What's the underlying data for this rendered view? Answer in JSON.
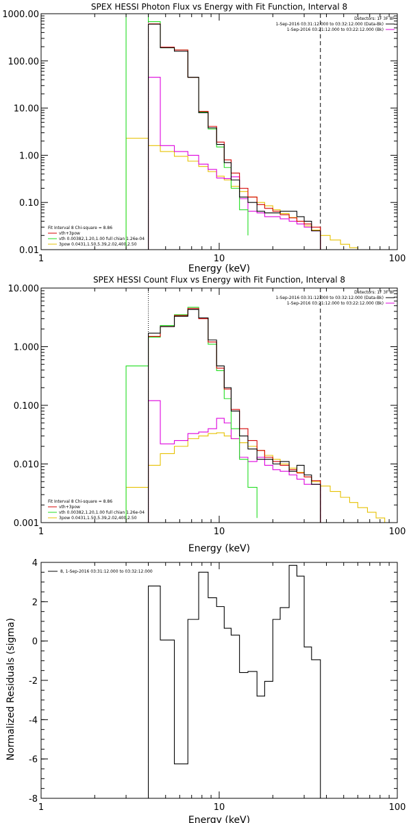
{
  "colors": {
    "black": "#000000",
    "red": "#d40000",
    "green": "#22dd22",
    "magenta": "#dd00dd",
    "gold": "#e6c000"
  },
  "chart_data": [
    {
      "type": "line",
      "title": "SPEX HESSI Photon Flux vs Energy with Fit Function, Interval 8",
      "xlabel": "Energy (keV)",
      "ylabel": "",
      "xscale": "log",
      "yscale": "log",
      "xlim": [
        1,
        100
      ],
      "ylim": [
        0.01,
        1000
      ],
      "x_ticks": [
        "1",
        "10",
        "100"
      ],
      "y_ticks": [
        "0.01",
        "0.10",
        "1.00",
        "10.00",
        "100.00",
        "1000.00"
      ],
      "detectors_label": "Detectors: 1F 3F 8F",
      "legend_top": [
        "1-Sep-2016 03:31:12.000 to 03:32:12.000 (Data-Bk)",
        "1-Sep-2016 03:21:12.000 to 03:22:12.000 (Bk)"
      ],
      "legend_bottom": [
        "Fit Interval 8   Chi-square = 8.86",
        "vth+3pow",
        "vth 0.00382,1.20,1.00  full chian 1.26e-04",
        "3pow 0.0431,1.50,5.39,2.02,400,2.50"
      ],
      "vlines": [
        4,
        37
      ],
      "series": [
        {
          "name": "1-Sep-2016 03:31:12.000 to 03:32:12.000 (Data-Bk)",
          "edges": [
            4,
            4.67,
            5.6,
            6.67,
            7.67,
            8.67,
            9.67,
            10.67,
            11.67,
            13,
            14.5,
            16.3,
            18,
            20,
            22,
            24.7,
            27.3,
            30,
            33,
            37
          ],
          "values": [
            600,
            190,
            160,
            45,
            8,
            3.8,
            1.7,
            0.7,
            0.3,
            0.13,
            0.1,
            0.065,
            0.06,
            0.06,
            0.065,
            0.065,
            0.05,
            0.04,
            0.025
          ]
        },
        {
          "name": "vth+3pow",
          "edges": [
            4,
            4.67,
            5.6,
            6.67,
            7.67,
            8.67,
            9.67,
            10.67,
            11.67,
            13,
            14.5,
            16.3,
            18,
            20,
            22,
            24.7,
            27.3,
            30,
            33,
            37
          ],
          "values": [
            610,
            195,
            170,
            45,
            8.5,
            4.1,
            1.9,
            0.8,
            0.42,
            0.2,
            0.13,
            0.09,
            0.075,
            0.065,
            0.055,
            0.047,
            0.04,
            0.035,
            0.03
          ]
        },
        {
          "name": "vth",
          "edges": [
            3,
            4,
            4.67,
            5.6,
            6.67,
            7.67,
            8.67,
            9.67,
            10.67,
            11.67,
            13,
            14.5
          ],
          "values": [
            1000,
            680,
            190,
            170,
            45,
            8.2,
            3.6,
            1.5,
            0.55,
            0.2,
            0.07,
            0.02
          ]
        },
        {
          "name": "1-Sep-2016 03:21:12.000 to 03:22:12.000 (Bk)",
          "edges": [
            4,
            4.67,
            5.6,
            6.67,
            7.67,
            8.67,
            9.67,
            10.67,
            11.67,
            13,
            14.5,
            16.3,
            18,
            20,
            22,
            24.7,
            27.3,
            30,
            33,
            37
          ],
          "values": [
            45,
            1.6,
            1.2,
            1.0,
            0.65,
            0.5,
            0.33,
            0.32,
            0.35,
            0.12,
            0.065,
            0.06,
            0.05,
            0.05,
            0.045,
            0.04,
            0.035,
            0.03,
            0.025
          ]
        },
        {
          "name": "3pow",
          "edges": [
            3,
            4,
            4.67,
            5.6,
            6.67,
            7.67,
            8.67,
            9.67,
            10.67,
            11.67,
            13,
            14.5,
            16.3,
            18,
            20,
            22,
            24.7,
            27.3,
            30,
            33,
            37,
            42,
            48,
            54,
            60
          ],
          "values": [
            2.3,
            1.6,
            1.2,
            0.95,
            0.75,
            0.58,
            0.45,
            0.36,
            0.3,
            0.22,
            0.17,
            0.13,
            0.1,
            0.085,
            0.07,
            0.058,
            0.048,
            0.04,
            0.032,
            0.026,
            0.02,
            0.016,
            0.013,
            0.011
          ]
        }
      ]
    },
    {
      "type": "line",
      "title": "SPEX HESSI Count Flux vs Energy with Fit Function, Interval 8",
      "xlabel": "Energy (keV)",
      "ylabel": "",
      "xscale": "log",
      "yscale": "log",
      "xlim": [
        1,
        100
      ],
      "ylim": [
        0.001,
        10
      ],
      "x_ticks": [
        "1",
        "10",
        "100"
      ],
      "y_ticks": [
        "0.001",
        "0.010",
        "0.100",
        "1.000",
        "10.000"
      ],
      "detectors_label": "Detectors: 1F 3F 8F",
      "legend_top": [
        "1-Sep-2016 03:31:12.000 to 03:32:12.000 (Data-Bk)",
        "1-Sep-2016 03:21:12.000 to 03:22:12.000 (Bk)"
      ],
      "legend_bottom": [
        "Fit Interval 8   Chi-square = 8.86",
        "vth+3pow",
        "vth 0.00382,1.20,1.00  full chian 1.26e-04",
        "3pow 0.0431,1.50,5.39,2.02,400,2.50"
      ],
      "vlines": [
        4,
        37
      ],
      "series": [
        {
          "name": "1-Sep-2016 03:31:12.000 to 03:32:12.000 (Data-Bk)",
          "edges": [
            4,
            4.67,
            5.6,
            6.67,
            7.67,
            8.67,
            9.67,
            10.67,
            11.67,
            13,
            14.5,
            16.3,
            18,
            20,
            22,
            24.7,
            27.3,
            30,
            33,
            37
          ],
          "values": [
            1.7,
            2.2,
            3.3,
            4.3,
            3.1,
            1.3,
            0.47,
            0.2,
            0.08,
            0.03,
            0.018,
            0.012,
            0.012,
            0.01,
            0.011,
            0.0075,
            0.0095,
            0.0065,
            0.0045
          ]
        },
        {
          "name": "vth+3pow",
          "edges": [
            4,
            4.67,
            5.6,
            6.67,
            7.67,
            8.67,
            9.67,
            10.67,
            11.67,
            13,
            14.5,
            16.3,
            18,
            20,
            22,
            24.7,
            27.3,
            30,
            33,
            37
          ],
          "values": [
            1.5,
            2.2,
            3.4,
            4.5,
            3.0,
            1.2,
            0.43,
            0.19,
            0.085,
            0.04,
            0.025,
            0.017,
            0.013,
            0.011,
            0.0095,
            0.008,
            0.007,
            0.006,
            0.0052
          ]
        },
        {
          "name": "vth",
          "edges": [
            3,
            4,
            4.67,
            5.6,
            6.67,
            7.67,
            8.67,
            9.67,
            10.67,
            11.67,
            13,
            14.5,
            16.3
          ],
          "values": [
            0.47,
            1.45,
            2.3,
            3.5,
            4.7,
            3.1,
            1.1,
            0.39,
            0.13,
            0.04,
            0.012,
            0.004,
            0.0012
          ]
        },
        {
          "name": "1-Sep-2016 03:21:12.000 to 03:22:12.000 (Bk)",
          "edges": [
            4,
            4.67,
            5.6,
            6.67,
            7.67,
            8.67,
            9.67,
            10.67,
            11.67,
            13,
            14.5,
            16.3,
            18,
            20,
            22,
            24.7,
            27.3,
            30,
            33,
            37
          ],
          "values": [
            0.12,
            0.022,
            0.025,
            0.033,
            0.035,
            0.04,
            0.06,
            0.05,
            0.027,
            0.013,
            0.011,
            0.013,
            0.0095,
            0.008,
            0.0075,
            0.0065,
            0.0055,
            0.0045,
            0.0045
          ]
        },
        {
          "name": "3pow",
          "edges": [
            3,
            4,
            4.67,
            5.6,
            6.67,
            7.67,
            8.67,
            9.67,
            10.67,
            11.67,
            13,
            14.5,
            16.3,
            18,
            20,
            22,
            24.7,
            27.3,
            30,
            33,
            37,
            42,
            48,
            54,
            60,
            68,
            76,
            85,
            95
          ],
          "values": [
            0.004,
            0.0095,
            0.015,
            0.02,
            0.027,
            0.03,
            0.033,
            0.034,
            0.03,
            0.027,
            0.023,
            0.02,
            0.017,
            0.014,
            0.012,
            0.01,
            0.0085,
            0.0072,
            0.006,
            0.005,
            0.0042,
            0.0034,
            0.0027,
            0.0022,
            0.0018,
            0.0015,
            0.0012,
            0.001
          ]
        }
      ]
    },
    {
      "type": "line",
      "title": "",
      "xlabel": "Energy (keV)",
      "ylabel": "Normalized Residuals (sigma)",
      "xscale": "log",
      "yscale": "linear",
      "xlim": [
        1,
        100
      ],
      "ylim": [
        -8,
        4
      ],
      "x_ticks": [
        "1",
        "10",
        "100"
      ],
      "y_ticks": [
        "-8",
        "-6",
        "-4",
        "-2",
        "0",
        "2",
        "4"
      ],
      "legend": "8, 1-Sep-2016 03:31:12.000 to 03:32:12.000",
      "series": [
        {
          "name": "8, 1-Sep-2016 03:31:12.000 to 03:32:12.000",
          "edges": [
            4,
            4.67,
            5.6,
            6.67,
            7.67,
            8.67,
            9.67,
            10.67,
            11.67,
            13,
            14.5,
            16.3,
            18,
            20,
            22,
            24.7,
            27.3,
            30,
            33,
            37
          ],
          "values": [
            2.8,
            0.05,
            -6.25,
            1.1,
            3.5,
            2.2,
            1.75,
            0.65,
            0.3,
            -1.6,
            -1.55,
            -2.8,
            -2.05,
            1.1,
            1.7,
            3.85,
            3.3,
            -0.3,
            -0.95
          ]
        }
      ]
    }
  ]
}
